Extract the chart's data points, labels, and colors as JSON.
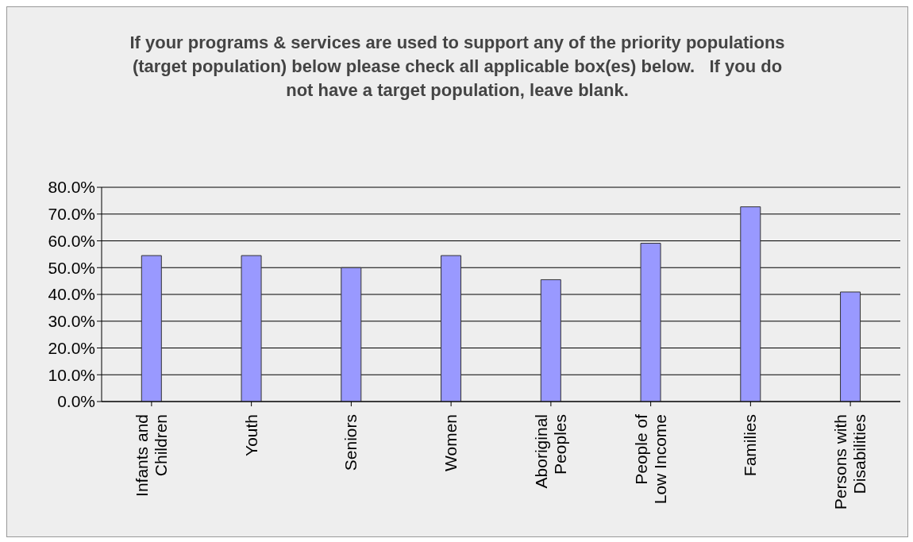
{
  "chart_data": {
    "type": "bar",
    "title": "If your programs & services are used to support any of the priority populations (target population) below please check all applicable box(es) below.   If you do not have a target population, leave blank.",
    "categories": [
      "Infants and Children",
      "Youth",
      "Seniors",
      "Women",
      "Aboriginal Peoples",
      "People of Low Income",
      "Families",
      "Persons with Disabilities"
    ],
    "values": [
      54.5,
      54.5,
      50.0,
      54.5,
      45.5,
      59.1,
      72.7,
      40.9
    ],
    "color": "#9999ff",
    "ylim": [
      0,
      80
    ],
    "yticks": [
      {
        "value": 0,
        "label": "0.0%"
      },
      {
        "value": 10,
        "label": "10.0%"
      },
      {
        "value": 20,
        "label": "20.0%"
      },
      {
        "value": 30,
        "label": "30.0%"
      },
      {
        "value": 40,
        "label": "40.0%"
      },
      {
        "value": 50,
        "label": "50.0%"
      },
      {
        "value": 60,
        "label": "60.0%"
      },
      {
        "value": 70,
        "label": "70.0%"
      },
      {
        "value": 80,
        "label": "80.0%"
      }
    ],
    "grid": "y",
    "legend": false
  }
}
